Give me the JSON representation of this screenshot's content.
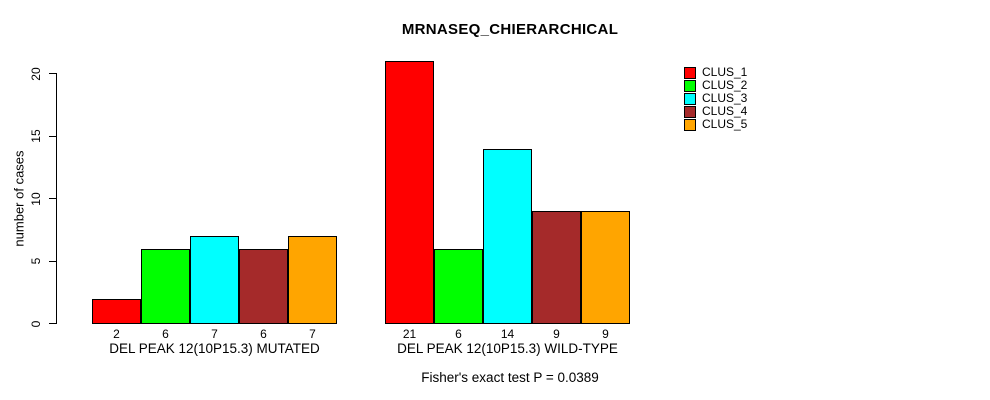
{
  "chart": {
    "title": "MRNASEQ_CHIERARCHICAL",
    "ylabel": "number of cases",
    "footer": "Fisher's exact test P = 0.0389"
  },
  "chart_data": {
    "type": "bar",
    "title": "MRNASEQ_CHIERARCHICAL",
    "xlabel": "",
    "ylabel": "number of cases",
    "ylim": [
      0,
      20
    ],
    "yticks": [
      0,
      5,
      10,
      15,
      20
    ],
    "grid": false,
    "legend_position": "top-right",
    "categories": [
      "DEL PEAK 12(10P15.3) MUTATED",
      "DEL PEAK 12(10P15.3) WILD-TYPE"
    ],
    "series": [
      {
        "name": "CLUS_1",
        "color": "#FF0000",
        "values": [
          2,
          21
        ]
      },
      {
        "name": "CLUS_2",
        "color": "#00FF00",
        "values": [
          6,
          6
        ]
      },
      {
        "name": "CLUS_3",
        "color": "#00FFFF",
        "values": [
          7,
          14
        ]
      },
      {
        "name": "CLUS_4",
        "color": "#A52A2A",
        "values": [
          6,
          9
        ]
      },
      {
        "name": "CLUS_5",
        "color": "#FFA500",
        "values": [
          7,
          9
        ]
      }
    ],
    "bar_value_labels": [
      [
        "2",
        "6",
        "7",
        "6",
        "7"
      ],
      [
        "21",
        "6",
        "14",
        "9",
        "9"
      ]
    ],
    "annotation": "Fisher's exact test P = 0.0389"
  }
}
